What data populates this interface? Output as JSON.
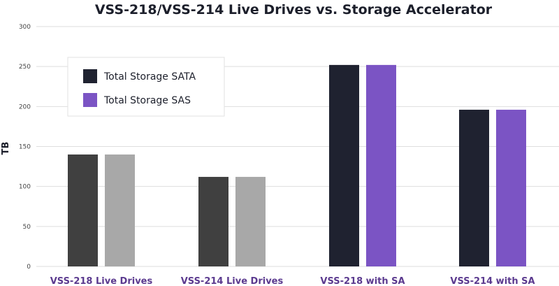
{
  "chart_data": {
    "type": "bar",
    "title": "VSS-218/VSS-214 Live Drives vs. Storage Accelerator",
    "ylabel": "TB",
    "xlabel": "",
    "ylim": [
      0,
      300
    ],
    "yticks": [
      0,
      50,
      100,
      150,
      200,
      250,
      300
    ],
    "grid": true,
    "legend_position": "top-left",
    "categories": [
      "VSS-218 Live Drives",
      "VSS-214 Live Drives",
      "VSS-218 with SA",
      "VSS-214 with SA"
    ],
    "series": [
      {
        "name": "Total Storage SATA",
        "values": [
          140,
          112,
          252,
          196
        ],
        "color": "#1f2230"
      },
      {
        "name": "Total Storage SAS",
        "values": [
          140,
          112,
          252,
          196
        ],
        "color": "#7b54c4"
      }
    ],
    "bar_colors": [
      [
        "#404040",
        "#a8a8a8"
      ],
      [
        "#404040",
        "#a8a8a8"
      ],
      [
        "#1f2230",
        "#7b54c4"
      ],
      [
        "#1f2230",
        "#7b54c4"
      ]
    ]
  }
}
